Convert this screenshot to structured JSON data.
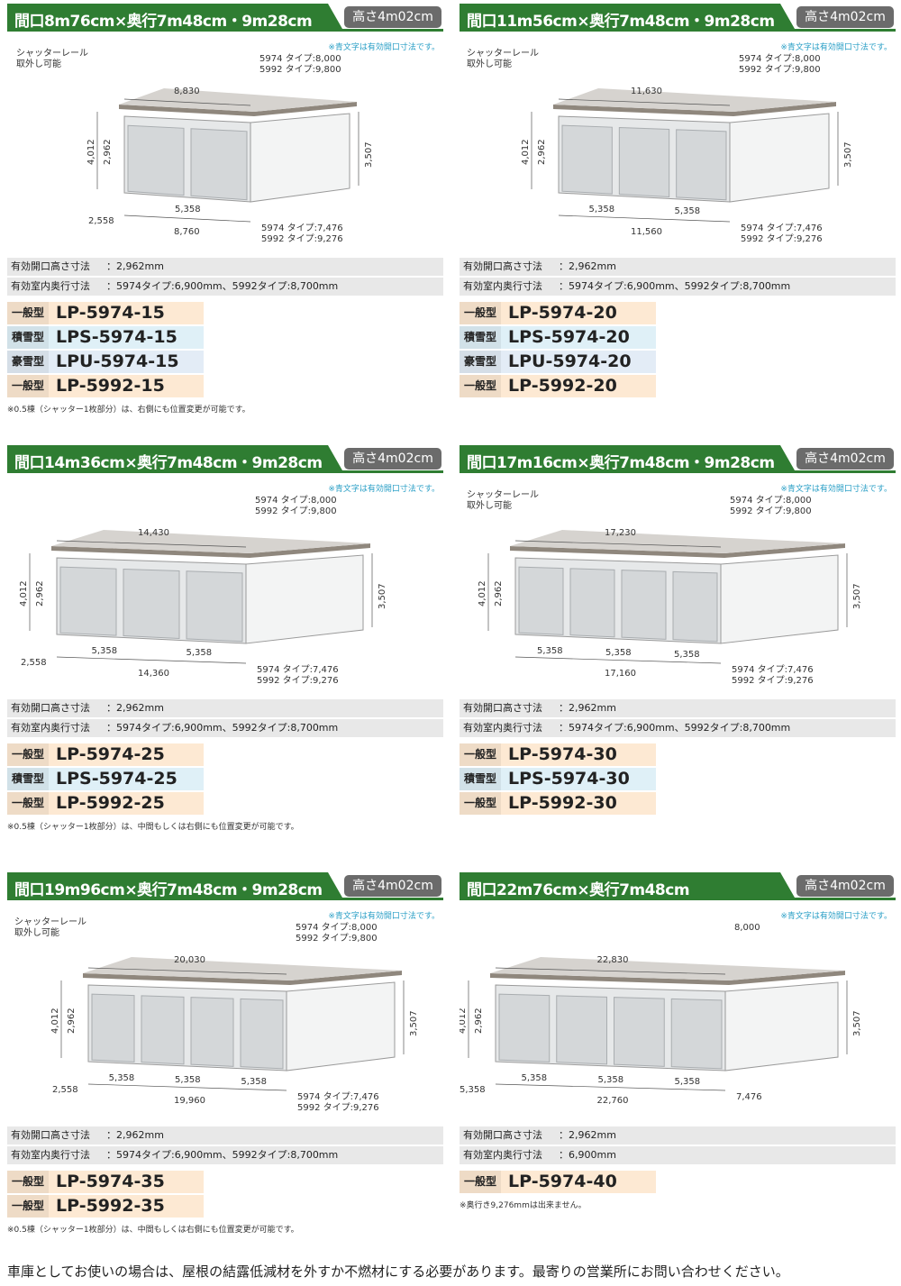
{
  "panels": [
    {
      "title": "間口8m76cm×奥行7m48cm・9m28cm",
      "height": "高さ4m02cm",
      "note": "※青文字は有効開口寸法です。",
      "diagram": {
        "rail_note": [
          "シャッターレール",
          "取外し可能"
        ],
        "width_top": "8,830",
        "depth_top": [
          "5974 タイプ:8,000",
          "5992 タイプ:9,800"
        ],
        "height_total": "4,012",
        "opening_height": "2,962",
        "side_height": "3,507",
        "side_offset": "2,558",
        "openings": [
          "5,358"
        ],
        "width_bottom": "8,760",
        "depth_bottom": [
          "5974 タイプ:7,476",
          "5992 タイプ:9,276"
        ]
      },
      "spec": [
        {
          "label": "有効開口高さ寸法",
          "value": "：2,962mm"
        },
        {
          "label": "有効室内奥行寸法",
          "value": "：5974タイプ:6,900mm、5992タイプ:8,700mm"
        }
      ],
      "models": [
        {
          "type": "一般型",
          "code": "LP-5974-15",
          "color": "#fde9d3"
        },
        {
          "type": "積雪型",
          "code": "LPS-5974-15",
          "color": "#dff0f7"
        },
        {
          "type": "豪雪型",
          "code": "LPU-5974-15",
          "color": "#e3ecf6"
        },
        {
          "type": "一般型",
          "code": "LP-5992-15",
          "color": "#fde9d3"
        }
      ],
      "footnote": "※0.5棟（シャッター1枚部分）は、右側にも位置変更が可能です。"
    },
    {
      "title": "間口11m56cm×奥行7m48cm・9m28cm",
      "height": "高さ4m02cm",
      "note": "※青文字は有効開口寸法です。",
      "diagram": {
        "rail_note": [
          "シャッターレール",
          "取外し可能"
        ],
        "width_top": "11,630",
        "depth_top": [
          "5974 タイプ:8,000",
          "5992 タイプ:9,800"
        ],
        "height_total": "4,012",
        "opening_height": "2,962",
        "side_height": "3,507",
        "openings": [
          "5,358",
          "5,358"
        ],
        "width_bottom": "11,560",
        "depth_bottom": [
          "5974 タイプ:7,476",
          "5992 タイプ:9,276"
        ]
      },
      "spec": [
        {
          "label": "有効開口高さ寸法",
          "value": "：2,962mm"
        },
        {
          "label": "有効室内奥行寸法",
          "value": "：5974タイプ:6,900mm、5992タイプ:8,700mm"
        }
      ],
      "models": [
        {
          "type": "一般型",
          "code": "LP-5974-20",
          "color": "#fde9d3"
        },
        {
          "type": "積雪型",
          "code": "LPS-5974-20",
          "color": "#dff0f7"
        },
        {
          "type": "豪雪型",
          "code": "LPU-5974-20",
          "color": "#e3ecf6"
        },
        {
          "type": "一般型",
          "code": "LP-5992-20",
          "color": "#fde9d3"
        }
      ]
    },
    {
      "title": "間口14m36cm×奥行7m48cm・9m28cm",
      "height": "高さ4m02cm",
      "note": "※青文字は有効開口寸法です。",
      "diagram": {
        "width_top": "14,430",
        "depth_top": [
          "5974 タイプ:8,000",
          "5992 タイプ:9,800"
        ],
        "height_total": "4,012",
        "opening_height": "2,962",
        "side_height": "3,507",
        "side_offset": "2,558",
        "openings": [
          "5,358",
          "5,358"
        ],
        "width_bottom": "14,360",
        "depth_bottom": [
          "5974 タイプ:7,476",
          "5992 タイプ:9,276"
        ]
      },
      "spec": [
        {
          "label": "有効開口高さ寸法",
          "value": "：2,962mm"
        },
        {
          "label": "有効室内奥行寸法",
          "value": "：5974タイプ:6,900mm、5992タイプ:8,700mm"
        }
      ],
      "models": [
        {
          "type": "一般型",
          "code": "LP-5974-25",
          "color": "#fde9d3"
        },
        {
          "type": "積雪型",
          "code": "LPS-5974-25",
          "color": "#dff0f7"
        },
        {
          "type": "一般型",
          "code": "LP-5992-25",
          "color": "#fde9d3"
        }
      ],
      "footnote": "※0.5棟（シャッター1枚部分）は、中間もしくは右側にも位置変更が可能です。"
    },
    {
      "title": "間口17m16cm×奥行7m48cm・9m28cm",
      "height": "高さ4m02cm",
      "note": "※青文字は有効開口寸法です。",
      "diagram": {
        "rail_note": [
          "シャッターレール",
          "取外し可能"
        ],
        "width_top": "17,230",
        "depth_top": [
          "5974 タイプ:8,000",
          "5992 タイプ:9,800"
        ],
        "height_total": "4,012",
        "opening_height": "2,962",
        "side_height": "3,507",
        "openings": [
          "5,358",
          "5,358",
          "5,358"
        ],
        "width_bottom": "17,160",
        "depth_bottom": [
          "5974 タイプ:7,476",
          "5992 タイプ:9,276"
        ]
      },
      "spec": [
        {
          "label": "有効開口高さ寸法",
          "value": "：2,962mm"
        },
        {
          "label": "有効室内奥行寸法",
          "value": "：5974タイプ:6,900mm、5992タイプ:8,700mm"
        }
      ],
      "models": [
        {
          "type": "一般型",
          "code": "LP-5974-30",
          "color": "#fde9d3"
        },
        {
          "type": "積雪型",
          "code": "LPS-5974-30",
          "color": "#dff0f7"
        },
        {
          "type": "一般型",
          "code": "LP-5992-30",
          "color": "#fde9d3"
        }
      ]
    },
    {
      "title": "間口19m96cm×奥行7m48cm・9m28cm",
      "height": "高さ4m02cm",
      "note": "※青文字は有効開口寸法です。",
      "diagram": {
        "rail_note": [
          "シャッターレール",
          "取外し可能"
        ],
        "width_top": "20,030",
        "depth_top": [
          "5974 タイプ:8,000",
          "5992 タイプ:9,800"
        ],
        "height_total": "4,012",
        "opening_height": "2,962",
        "side_height": "3,507",
        "side_offset": "2,558",
        "openings": [
          "5,358",
          "5,358",
          "5,358"
        ],
        "width_bottom": "19,960",
        "depth_bottom": [
          "5974 タイプ:7,476",
          "5992 タイプ:9,276"
        ]
      },
      "spec": [
        {
          "label": "有効開口高さ寸法",
          "value": "：2,962mm"
        },
        {
          "label": "有効室内奥行寸法",
          "value": "：5974タイプ:6,900mm、5992タイプ:8,700mm"
        }
      ],
      "models": [
        {
          "type": "一般型",
          "code": "LP-5974-35",
          "color": "#fde9d3"
        },
        {
          "type": "一般型",
          "code": "LP-5992-35",
          "color": "#fde9d3"
        }
      ],
      "footnote": "※0.5棟（シャッター1枚部分）は、中間もしくは右側にも位置変更が可能です。"
    },
    {
      "title": "間口22m76cm×奥行7m48cm",
      "height": "高さ4m02cm",
      "note": "※青文字は有効開口寸法です。",
      "diagram": {
        "width_top": "22,830",
        "depth_top": [
          "8,000"
        ],
        "height_total": "4,012",
        "opening_height": "2,962",
        "side_height": "3,507",
        "side_offset": "5,358",
        "openings": [
          "5,358",
          "5,358",
          "5,358"
        ],
        "width_bottom": "22,760",
        "depth_bottom": [
          "7,476"
        ]
      },
      "spec": [
        {
          "label": "有効開口高さ寸法",
          "value": "：2,962mm"
        },
        {
          "label": "有効室内奥行寸法",
          "value": "：6,900mm"
        }
      ],
      "models": [
        {
          "type": "一般型",
          "code": "LP-5974-40",
          "color": "#fde9d3"
        }
      ],
      "footnote": "※奥行き9,276mmは出来ません。"
    }
  ],
  "footer": "車庫としてお使いの場合は、屋根の結露低減材を外すか不燃材にする必要があります。最寄りの営業所にお問い合わせください。"
}
